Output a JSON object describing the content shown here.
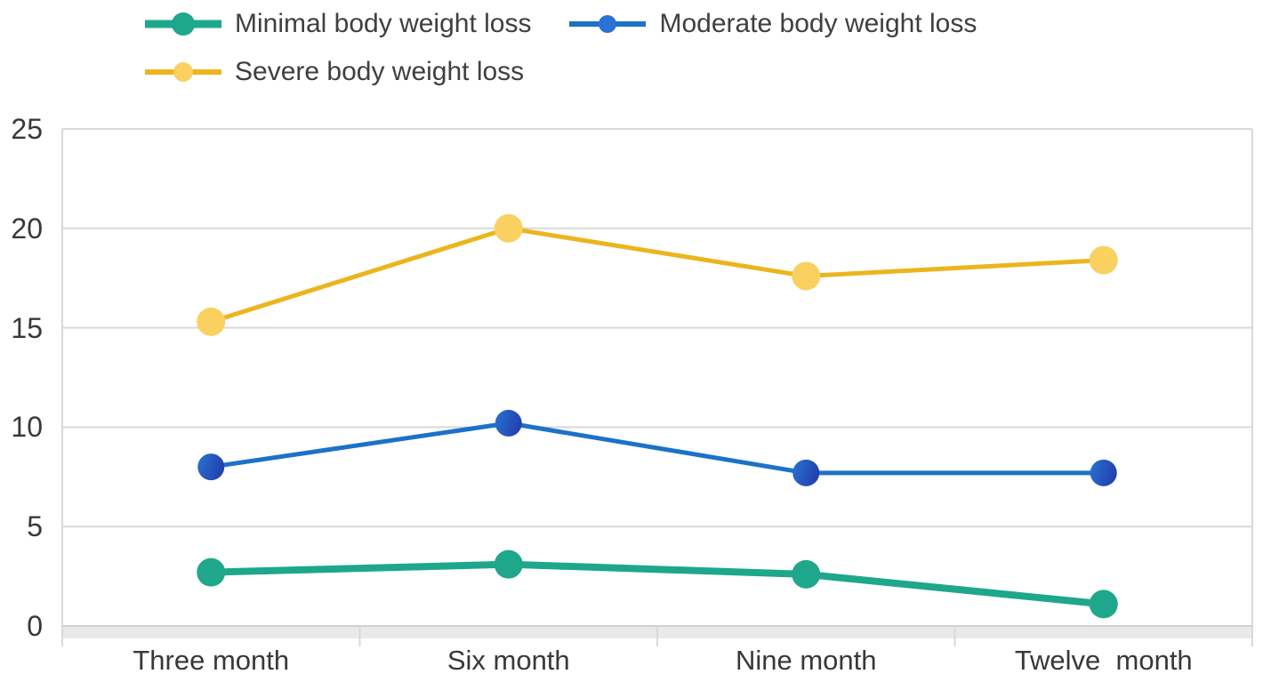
{
  "chart_data": {
    "type": "line",
    "title": "",
    "xlabel": "",
    "ylabel": "",
    "categories": [
      "Three month",
      "Six month",
      "Nine month",
      "Twelve  month"
    ],
    "yticks": [
      0,
      5,
      10,
      15,
      20,
      25
    ],
    "ylim": [
      0,
      25
    ],
    "grid": true,
    "legend_position": "top-left",
    "gridline_color": "#d9d9d9",
    "axis_band_color": "#e9e9e9",
    "axis_text_color": "#383838",
    "series": [
      {
        "name": "Minimal body weight loss",
        "color": "#1ea78b",
        "marker_color": "#1ea78b",
        "marker_color2": "#1ea78b",
        "line_width": 8,
        "marker_radius": 16,
        "values": [
          2.7,
          3.1,
          2.6,
          1.1
        ]
      },
      {
        "name": "Moderate body weight loss",
        "color": "#1b72c8",
        "marker_color": "#2b72d2",
        "marker_color2": "#2142af",
        "line_width": 5,
        "marker_radius": 15,
        "values": [
          8.0,
          10.2,
          7.7,
          7.7
        ]
      },
      {
        "name": "Severe body weight loss",
        "color": "#ecb51e",
        "marker_color": "#fad160",
        "marker_color2": "#fad160",
        "line_width": 5,
        "marker_radius": 16,
        "values": [
          15.3,
          20.0,
          17.6,
          18.4
        ]
      }
    ]
  }
}
